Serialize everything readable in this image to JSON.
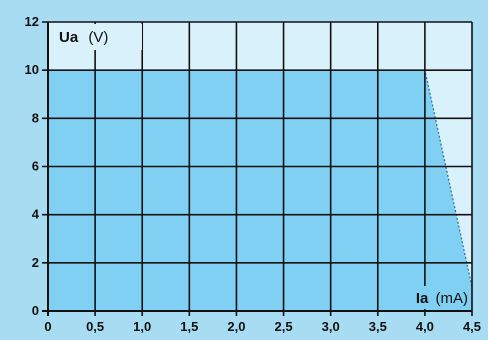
{
  "chart_data": {
    "type": "area",
    "x": [
      0,
      4.0,
      4.5
    ],
    "y": [
      10,
      10,
      1
    ],
    "xlim": [
      0,
      4.5
    ],
    "ylim": [
      0,
      12
    ],
    "x_ticks": [
      "0",
      "0,5",
      "1,0",
      "1,5",
      "2,0",
      "2,5",
      "3,0",
      "3,5",
      "4,0",
      "4,5"
    ],
    "y_ticks": [
      "0",
      "2",
      "4",
      "6",
      "8",
      "10",
      "12"
    ],
    "ylabel": {
      "symbol": "Ua",
      "unit": "(V)"
    },
    "xlabel": {
      "symbol": "Ia",
      "unit": "(mA)"
    },
    "grid": true,
    "colors": {
      "background": "#a8dcf3",
      "plot_background": "#d9f1fb",
      "area_fill": "#7fd0f3",
      "grid": "#111111"
    }
  }
}
